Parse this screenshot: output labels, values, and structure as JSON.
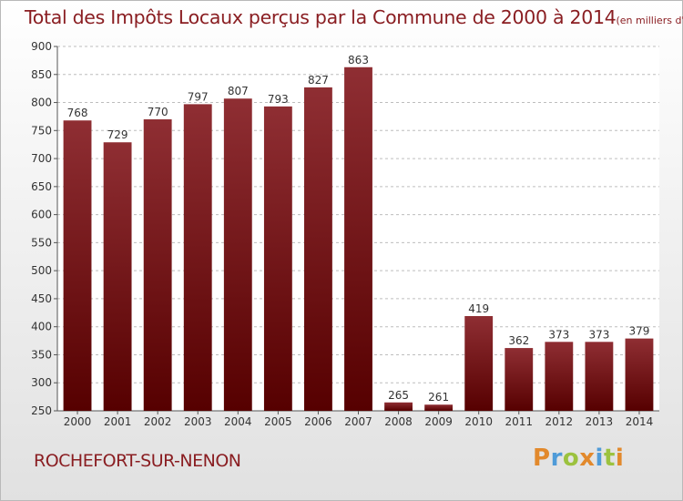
{
  "title": "Total des Impôts Locaux perçus par la Commune de 2000 à 2014",
  "unit": "(en milliers d'€)",
  "commune": "ROCHEFORT-SUR-NENON",
  "logo": {
    "text": "Proxiti",
    "letter_colors": [
      "#e2892c",
      "#4f9bd8",
      "#9cc23f",
      "#e2892c",
      "#4f9bd8",
      "#9cc23f",
      "#e2892c"
    ]
  },
  "colors": {
    "bar_top": "#8f2e33",
    "bar_bottom": "#560000",
    "title": "#8a1e22",
    "grid": "#bdbdbd"
  },
  "chart_data": {
    "type": "bar",
    "categories": [
      "2000",
      "2001",
      "2002",
      "2003",
      "2004",
      "2005",
      "2006",
      "2007",
      "2008",
      "2009",
      "2010",
      "2011",
      "2012",
      "2013",
      "2014"
    ],
    "values": [
      768,
      729,
      770,
      797,
      807,
      793,
      827,
      863,
      265,
      261,
      419,
      362,
      373,
      373,
      379
    ],
    "ylim": [
      250,
      900
    ],
    "yticks": [
      250,
      300,
      350,
      400,
      450,
      500,
      550,
      600,
      650,
      700,
      750,
      800,
      850,
      900
    ],
    "grid": true,
    "data_labels": true
  }
}
